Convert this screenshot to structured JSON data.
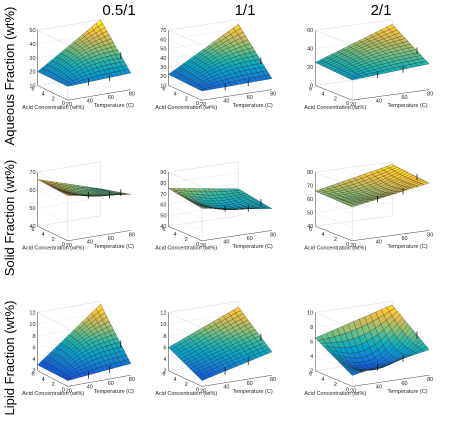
{
  "figure": {
    "column_titles": [
      "0.5/1",
      "1/1",
      "2/1"
    ],
    "row_labels": [
      "Aqueous Fraction (wt%)",
      "Solid Fraction (wt%)",
      "Lipid Fraction (wt%)"
    ],
    "x_axis_label": "Temperature (C)",
    "y_axis_label": "Acid Concentration (wt%)"
  },
  "colormap": [
    "#352a87",
    "#0f5cdd",
    "#1481d6",
    "#06a4ca",
    "#2eb7a4",
    "#87bf77",
    "#d1bb59",
    "#fec832",
    "#f9fb0e"
  ],
  "chart_data": [
    {
      "type": "surface3d",
      "column": "0.5/1",
      "row": "Aqueous Fraction (wt%)",
      "xlabel": "Temperature (C)",
      "ylabel": "Acid Concentration (wt%)",
      "xlim": [
        20,
        80
      ],
      "ylim": [
        0,
        6
      ],
      "zlim": [
        10,
        50
      ],
      "x_ticks": [
        20,
        40,
        60,
        80
      ],
      "y_ticks": [
        0,
        2,
        4,
        6
      ],
      "z_ticks": [
        10,
        20,
        30,
        40,
        50
      ],
      "corners": {
        "x_min_y_min": 20,
        "x_max_y_min": 22,
        "x_min_y_max": 20,
        "x_max_y_max": 50
      },
      "curvature": 4
    },
    {
      "type": "surface3d",
      "column": "1/1",
      "row": "Aqueous Fraction (wt%)",
      "xlabel": "Temperature (C)",
      "ylabel": "Acid Concentration (wt%)",
      "xlim": [
        20,
        80
      ],
      "ylim": [
        0,
        6
      ],
      "zlim": [
        10,
        70
      ],
      "x_ticks": [
        20,
        40,
        60,
        80
      ],
      "y_ticks": [
        0,
        2,
        4,
        6
      ],
      "z_ticks": [
        10,
        20,
        30,
        40,
        50,
        60,
        70
      ],
      "corners": {
        "x_min_y_min": 20,
        "x_max_y_min": 22,
        "x_min_y_max": 22,
        "x_max_y_max": 65
      },
      "curvature": 5
    },
    {
      "type": "surface3d",
      "column": "2/1",
      "row": "Aqueous Fraction (wt%)",
      "xlabel": "Temperature (C)",
      "ylabel": "Acid Concentration (wt%)",
      "xlim": [
        20,
        80
      ],
      "ylim": [
        0,
        6
      ],
      "zlim": [
        0,
        60
      ],
      "x_ticks": [
        20,
        40,
        60,
        80
      ],
      "y_ticks": [
        0,
        2,
        4,
        6
      ],
      "z_ticks": [
        0,
        20,
        40,
        60
      ],
      "corners": {
        "x_min_y_min": 22,
        "x_max_y_min": 28,
        "x_min_y_max": 25,
        "x_max_y_max": 55
      },
      "curvature": 3
    },
    {
      "type": "surface3d",
      "column": "0.5/1",
      "row": "Solid Fraction (wt%)",
      "xlabel": "Temperature (C)",
      "ylabel": "Acid Concentration (wt%)",
      "xlim": [
        20,
        80
      ],
      "ylim": [
        0,
        6
      ],
      "zlim": [
        40,
        70
      ],
      "x_ticks": [
        20,
        40,
        60,
        80
      ],
      "y_ticks": [
        0,
        2,
        4,
        6
      ],
      "z_ticks": [
        40,
        50,
        60,
        70
      ],
      "corners": {
        "x_min_y_min": 65,
        "x_max_y_min": 60,
        "x_min_y_max": 66,
        "x_max_y_max": 55
      },
      "curvature": -3
    },
    {
      "type": "surface3d",
      "column": "1/1",
      "row": "Solid Fraction (wt%)",
      "xlabel": "Temperature (C)",
      "ylabel": "Acid Concentration (wt%)",
      "xlim": [
        20,
        80
      ],
      "ylim": [
        0,
        6
      ],
      "zlim": [
        40,
        90
      ],
      "x_ticks": [
        20,
        40,
        60,
        80
      ],
      "y_ticks": [
        0,
        2,
        4,
        6
      ],
      "z_ticks": [
        40,
        50,
        60,
        70,
        80,
        90
      ],
      "corners": {
        "x_min_y_min": 70,
        "x_max_y_min": 60,
        "x_min_y_max": 75,
        "x_max_y_max": 65
      },
      "curvature": -8
    },
    {
      "type": "surface3d",
      "column": "2/1",
      "row": "Solid Fraction (wt%)",
      "xlabel": "Temperature (C)",
      "ylabel": "Acid Concentration (wt%)",
      "xlim": [
        20,
        80
      ],
      "ylim": [
        0,
        6
      ],
      "zlim": [
        40,
        80
      ],
      "x_ticks": [
        20,
        40,
        60,
        80
      ],
      "y_ticks": [
        0,
        2,
        4,
        6
      ],
      "z_ticks": [
        40,
        50,
        60,
        70,
        80
      ],
      "corners": {
        "x_min_y_min": 65,
        "x_max_y_min": 75,
        "x_min_y_max": 66,
        "x_max_y_max": 78
      },
      "curvature": -4
    },
    {
      "type": "surface3d",
      "column": "0.5/1",
      "row": "Lipid Fraction (wt%)",
      "xlabel": "Temperature (C)",
      "ylabel": "Acid Concentration (wt%)",
      "xlim": [
        20,
        80
      ],
      "ylim": [
        0,
        6
      ],
      "zlim": [
        2,
        12
      ],
      "x_ticks": [
        20,
        40,
        60,
        80
      ],
      "y_ticks": [
        0,
        2,
        4,
        6
      ],
      "z_ticks": [
        2,
        4,
        6,
        8,
        10,
        12
      ],
      "corners": {
        "x_min_y_min": 3,
        "x_max_y_min": 4,
        "x_min_y_max": 3,
        "x_max_y_max": 11.5
      },
      "curvature": 1
    },
    {
      "type": "surface3d",
      "column": "1/1",
      "row": "Lipid Fraction (wt%)",
      "xlabel": "Temperature (C)",
      "ylabel": "Acid Concentration (wt%)",
      "xlim": [
        20,
        80
      ],
      "ylim": [
        0,
        6
      ],
      "zlim": [
        2,
        12
      ],
      "x_ticks": [
        20,
        40,
        60,
        80
      ],
      "y_ticks": [
        0,
        2,
        4,
        6
      ],
      "z_ticks": [
        2,
        4,
        6,
        8,
        10,
        12
      ],
      "corners": {
        "x_min_y_min": 3,
        "x_max_y_min": 6,
        "x_min_y_max": 6,
        "x_max_y_max": 11
      },
      "curvature": 0
    },
    {
      "type": "surface3d",
      "column": "2/1",
      "row": "Lipid Fraction (wt%)",
      "xlabel": "Temperature (C)",
      "ylabel": "Acid Concentration (wt%)",
      "xlim": [
        20,
        80
      ],
      "ylim": [
        0,
        6
      ],
      "zlim": [
        2,
        10
      ],
      "x_ticks": [
        20,
        40,
        60,
        80
      ],
      "y_ticks": [
        0,
        2,
        4,
        6
      ],
      "z_ticks": [
        2,
        4,
        6,
        8,
        10
      ],
      "corners": {
        "x_min_y_min": 3.5,
        "x_max_y_min": 5.5,
        "x_min_y_max": 6.5,
        "x_max_y_max": 9.5
      },
      "curvature": -3
    }
  ]
}
